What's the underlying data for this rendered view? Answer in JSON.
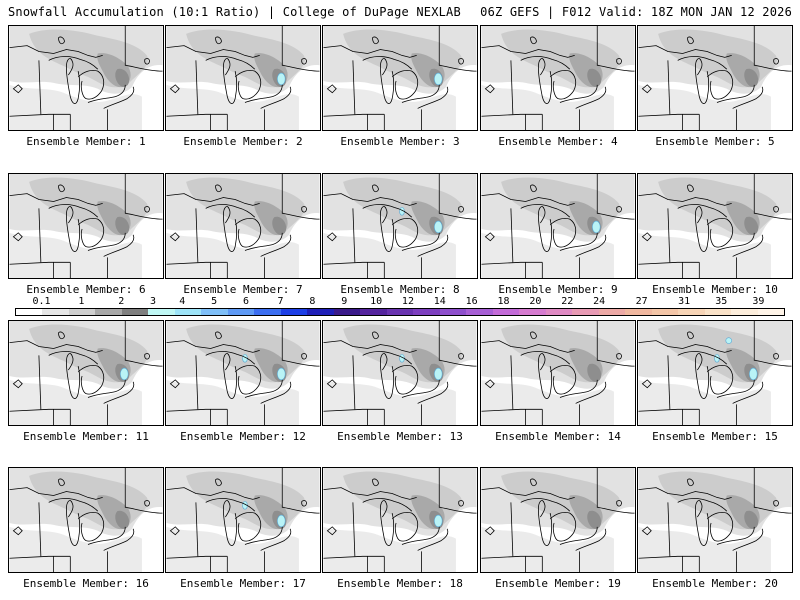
{
  "header": {
    "left_title": "Snowfall Accumulation (10:1 Ratio) | College of DuPage NEXLAB",
    "right_title": "06Z GEFS | F012 Valid: 18Z MON JAN 12 2026"
  },
  "colorbar": {
    "labels": [
      "0.1",
      "1",
      "2",
      "3",
      "4",
      "5",
      "6",
      "7",
      "8",
      "9",
      "10",
      "12",
      "14",
      "16",
      "18",
      "20",
      "22",
      "24",
      "27",
      "31",
      "35",
      "39"
    ],
    "colors": [
      "#ffffff",
      "#e6e6e6",
      "#cfcfcf",
      "#a8a8a8",
      "#7f7f7f",
      "#bff7f4",
      "#9ee4f8",
      "#7fbff8",
      "#5f9af5",
      "#3c6ef0",
      "#1d3fe6",
      "#1f1fb8",
      "#3a1a8a",
      "#55259e",
      "#6a34b0",
      "#7d3fbf",
      "#8e4fcc",
      "#a75fd5",
      "#c36bd8",
      "#d67bd0",
      "#e08ac4",
      "#e89ab4",
      "#eda9a6",
      "#f1b8a0",
      "#f4c6a8",
      "#f7d4b6",
      "#fae2c8",
      "#fdeedc",
      "#fff4e8"
    ]
  },
  "panels": [
    {
      "label": "Ensemble Member: 1",
      "blue": 0
    },
    {
      "label": "Ensemble Member: 2",
      "blue": 1
    },
    {
      "label": "Ensemble Member: 3",
      "blue": 1
    },
    {
      "label": "Ensemble Member: 4",
      "blue": 0
    },
    {
      "label": "Ensemble Member: 5",
      "blue": 0
    },
    {
      "label": "Ensemble Member: 6",
      "blue": 0
    },
    {
      "label": "Ensemble Member: 7",
      "blue": 0
    },
    {
      "label": "Ensemble Member: 8",
      "blue": 2
    },
    {
      "label": "Ensemble Member: 9",
      "blue": 1
    },
    {
      "label": "Ensemble Member: 10",
      "blue": 0
    },
    {
      "label": "Ensemble Member: 11",
      "blue": 1
    },
    {
      "label": "Ensemble Member: 12",
      "blue": 2
    },
    {
      "label": "Ensemble Member: 13",
      "blue": 2
    },
    {
      "label": "Ensemble Member: 14",
      "blue": 0
    },
    {
      "label": "Ensemble Member: 15",
      "blue": 3
    },
    {
      "label": "Ensemble Member: 16",
      "blue": 0
    },
    {
      "label": "Ensemble Member: 17",
      "blue": 2
    },
    {
      "label": "Ensemble Member: 18",
      "blue": 1
    },
    {
      "label": "Ensemble Member: 19",
      "blue": 0
    },
    {
      "label": "Ensemble Member: 20",
      "blue": 0
    }
  ]
}
